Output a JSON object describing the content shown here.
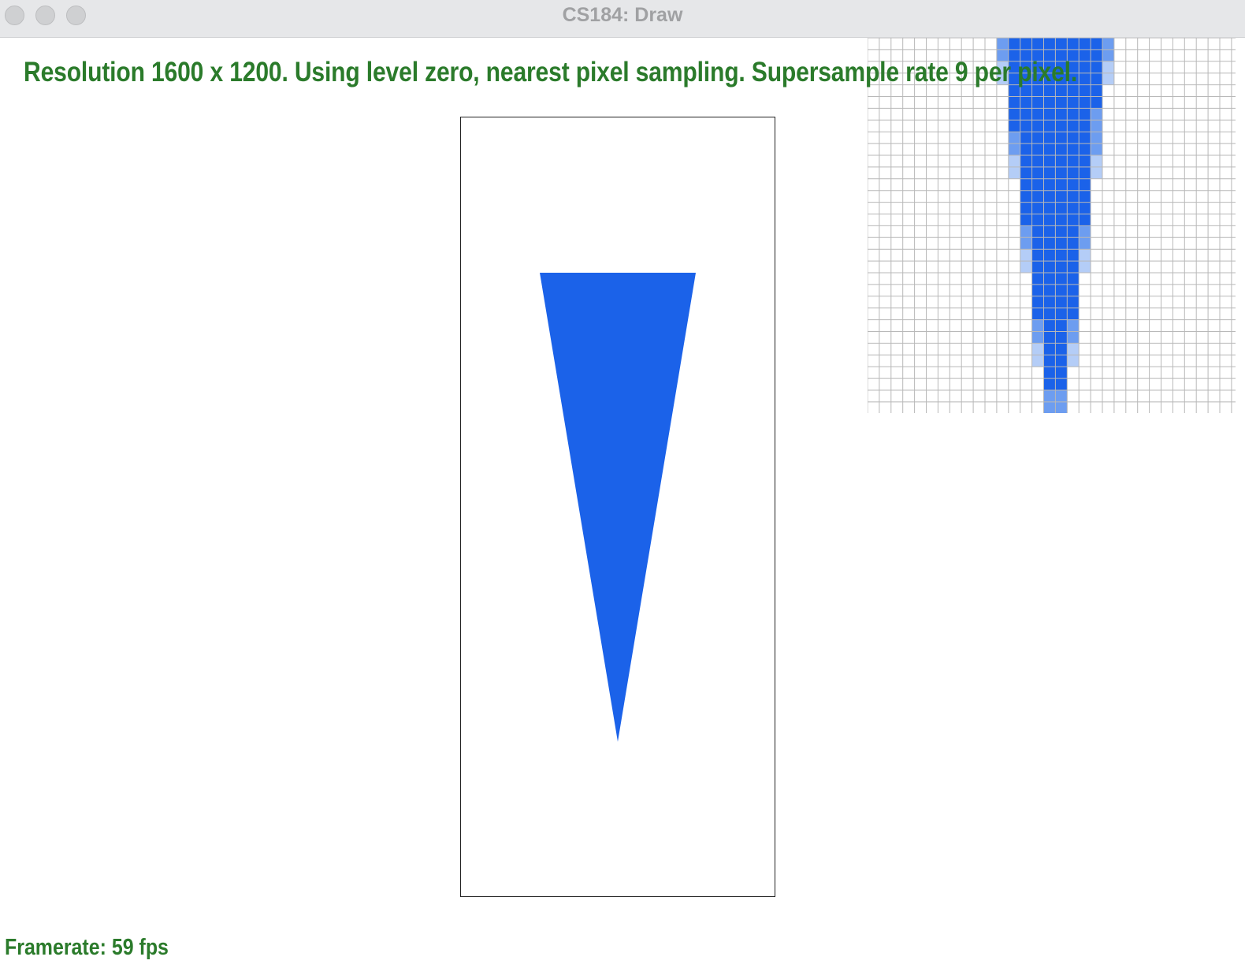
{
  "window": {
    "title": "CS184: Draw"
  },
  "overlay": {
    "status_text": "Resolution 1600 x 1200. Using level zero, nearest pixel sampling. Supersample rate 9 per pixel.",
    "framerate_text": "Framerate: 59 fps"
  },
  "scene": {
    "triangle_color": "#1b62e9",
    "text_color": "#2b7b2b",
    "zoom_partial_dark": "#6d9df0",
    "zoom_partial_light": "#b4cdf7",
    "grid_line_color": "#b8b8b8"
  }
}
